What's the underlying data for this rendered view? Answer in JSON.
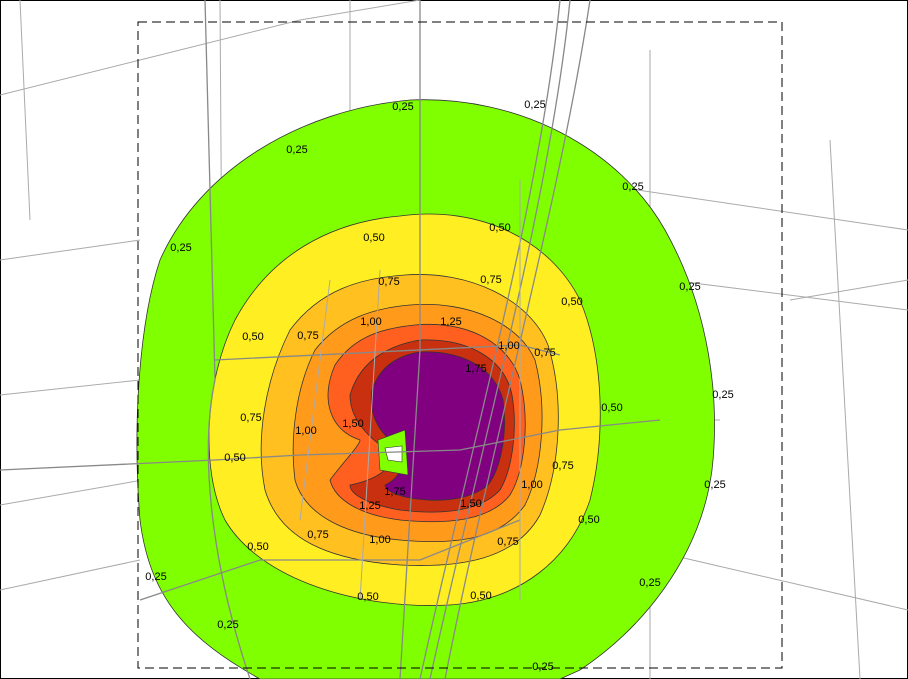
{
  "contour_labels": [
    "0,25",
    "0,25",
    "0,25",
    "0,25",
    "0,25",
    "0,25",
    "0,25",
    "0,25",
    "0,25",
    "0,25",
    "0,25",
    "0,25",
    "0,50",
    "0,50",
    "0,50",
    "0,50",
    "0,50",
    "0,50",
    "0,50",
    "0,50",
    "0,50",
    "0,50",
    "0,75",
    "0,75",
    "0,75",
    "0,75",
    "0,75",
    "0,75",
    "0,75",
    "0,75",
    "1,00",
    "1,00",
    "1,00",
    "1,00",
    "1,00",
    "1,25",
    "1,25",
    "1,50",
    "1,50",
    "1,75",
    "1,75"
  ]
}
